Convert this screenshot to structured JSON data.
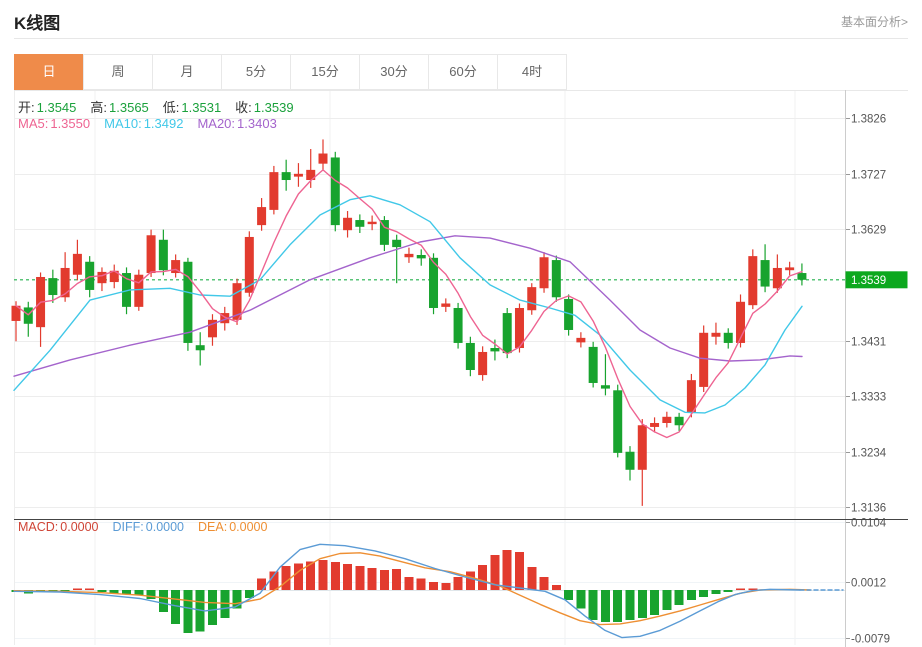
{
  "header": {
    "title": "K线图",
    "link": "基本面分析>"
  },
  "tabs": {
    "items": [
      {
        "name": "day",
        "label": "日",
        "active": true
      },
      {
        "name": "week",
        "label": "周",
        "active": false
      },
      {
        "name": "month",
        "label": "月",
        "active": false
      },
      {
        "name": "5min",
        "label": "5分",
        "active": false
      },
      {
        "name": "15min",
        "label": "15分",
        "active": false
      },
      {
        "name": "30min",
        "label": "30分",
        "active": false
      },
      {
        "name": "60min",
        "label": "60分",
        "active": false
      },
      {
        "name": "4hour",
        "label": "4时",
        "active": false
      }
    ]
  },
  "colors": {
    "up": "#e23b2e",
    "down": "#18a32e",
    "badge": "#0ca81e",
    "price_line": "#22b14c",
    "ohlc_value": "#1ba13c",
    "ma5": "#ee6492",
    "ma10": "#41c8e8",
    "ma20": "#a464cc",
    "diff": "#5b9bd5",
    "dea": "#ee8f33",
    "macd_label": "#cf4436",
    "tab_active_bg": "#ef8b4a",
    "grid": "#ededed",
    "vgrid": "#f2f2f2",
    "axis": "#cccccc",
    "separator": "#444444",
    "tick_text": "#555555"
  },
  "indicators": {
    "ohlc": [
      {
        "label": "开:",
        "value": "1.3545"
      },
      {
        "label": "高:",
        "value": "1.3565"
      },
      {
        "label": "低:",
        "value": "1.3531"
      },
      {
        "label": "收:",
        "value": "1.3539"
      }
    ],
    "ma": [
      {
        "label": "MA5: ",
        "value": "1.3550",
        "color_key": "ma5"
      },
      {
        "label": "MA10: ",
        "value": "1.3492",
        "color_key": "ma10"
      },
      {
        "label": "MA20: ",
        "value": "1.3403",
        "color_key": "ma20"
      }
    ],
    "macd": [
      {
        "label": "MACD:",
        "value": "0.0000",
        "color_key": "macd_label"
      },
      {
        "label": "DIFF:",
        "value": "0.0000",
        "color_key": "diff"
      },
      {
        "label": "DEA:",
        "value": "0.0000",
        "color_key": "dea"
      }
    ]
  },
  "chart_data": {
    "type": "candlestick",
    "title": "K线图 (daily K-line with MA5/MA10/MA20 and MACD)",
    "legend_position": "top-left",
    "grid": true,
    "main": {
      "price_axis": {
        "ticks": [
          "1.3826",
          "1.3727",
          "1.3629",
          "1.3431",
          "1.3333",
          "1.3234",
          "1.3136"
        ],
        "current_price": "1.3539",
        "ylim": [
          1.3136,
          1.3826
        ]
      },
      "candles_ohlc_order": [
        "open",
        "high",
        "low",
        "close"
      ],
      "candles": [
        [
          1.3466,
          1.3501,
          1.343,
          1.3493
        ],
        [
          1.349,
          1.35,
          1.3438,
          1.3461
        ],
        [
          1.3455,
          1.3552,
          1.342,
          1.3544
        ],
        [
          1.3542,
          1.3557,
          1.3498,
          1.3512
        ],
        [
          1.3508,
          1.3588,
          1.35,
          1.356
        ],
        [
          1.3548,
          1.361,
          1.3538,
          1.3585
        ],
        [
          1.3571,
          1.3581,
          1.3508,
          1.3521
        ],
        [
          1.3533,
          1.3561,
          1.3519,
          1.3553
        ],
        [
          1.3535,
          1.3566,
          1.3524,
          1.3555
        ],
        [
          1.3551,
          1.3561,
          1.3478,
          1.3491
        ],
        [
          1.3491,
          1.3557,
          1.3484,
          1.3548
        ],
        [
          1.3551,
          1.3628,
          1.3544,
          1.3618
        ],
        [
          1.361,
          1.3628,
          1.3547,
          1.3556
        ],
        [
          1.3551,
          1.3584,
          1.3543,
          1.3574
        ],
        [
          1.3571,
          1.3578,
          1.3413,
          1.3427
        ],
        [
          1.3423,
          1.3446,
          1.3387,
          1.3414
        ],
        [
          1.3437,
          1.3478,
          1.3422,
          1.3468
        ],
        [
          1.3462,
          1.3491,
          1.3449,
          1.348
        ],
        [
          1.3468,
          1.3541,
          1.3459,
          1.3533
        ],
        [
          1.3516,
          1.3625,
          1.3509,
          1.3615
        ],
        [
          1.3636,
          1.3684,
          1.3626,
          1.3668
        ],
        [
          1.3663,
          1.3741,
          1.3655,
          1.373
        ],
        [
          1.373,
          1.3752,
          1.3697,
          1.3716
        ],
        [
          1.3722,
          1.3746,
          1.3704,
          1.3727
        ],
        [
          1.3716,
          1.3771,
          1.3702,
          1.3734
        ],
        [
          1.3745,
          1.3788,
          1.3733,
          1.3763
        ],
        [
          1.3756,
          1.3766,
          1.3625,
          1.3636
        ],
        [
          1.3627,
          1.3661,
          1.3614,
          1.3649
        ],
        [
          1.3645,
          1.3655,
          1.3622,
          1.3633
        ],
        [
          1.3638,
          1.3653,
          1.3627,
          1.3642
        ],
        [
          1.3645,
          1.3652,
          1.359,
          1.3601
        ],
        [
          1.361,
          1.3619,
          1.3533,
          1.3597
        ],
        [
          1.3579,
          1.3596,
          1.3569,
          1.3585
        ],
        [
          1.3583,
          1.3593,
          1.3564,
          1.3577
        ],
        [
          1.3578,
          1.3586,
          1.3478,
          1.3489
        ],
        [
          1.3491,
          1.3506,
          1.3482,
          1.3497
        ],
        [
          1.3489,
          1.3498,
          1.3417,
          1.3427
        ],
        [
          1.3427,
          1.3438,
          1.3368,
          1.3379
        ],
        [
          1.337,
          1.3421,
          1.336,
          1.3411
        ],
        [
          1.3418,
          1.3433,
          1.3396,
          1.3412
        ],
        [
          1.348,
          1.3489,
          1.34,
          1.3409
        ],
        [
          1.3418,
          1.3497,
          1.341,
          1.3489
        ],
        [
          1.3485,
          1.3533,
          1.3477,
          1.3526
        ],
        [
          1.3524,
          1.3588,
          1.3516,
          1.3579
        ],
        [
          1.3574,
          1.3582,
          1.35,
          1.3508
        ],
        [
          1.3505,
          1.3513,
          1.344,
          1.345
        ],
        [
          1.3428,
          1.3446,
          1.3419,
          1.3436
        ],
        [
          1.342,
          1.3429,
          1.3348,
          1.3356
        ],
        [
          1.3352,
          1.3407,
          1.3334,
          1.3346
        ],
        [
          1.3343,
          1.3353,
          1.3224,
          1.3232
        ],
        [
          1.3234,
          1.3244,
          1.3183,
          1.3202
        ],
        [
          1.3202,
          1.3292,
          1.3138,
          1.3281
        ],
        [
          1.3278,
          1.3295,
          1.3268,
          1.3285
        ],
        [
          1.3285,
          1.3305,
          1.3277,
          1.3296
        ],
        [
          1.3296,
          1.3303,
          1.3271,
          1.3281
        ],
        [
          1.3304,
          1.3372,
          1.3295,
          1.3361
        ],
        [
          1.3349,
          1.3458,
          1.334,
          1.3445
        ],
        [
          1.3438,
          1.3463,
          1.3424,
          1.3445
        ],
        [
          1.3445,
          1.3453,
          1.3417,
          1.3427
        ],
        [
          1.3427,
          1.3513,
          1.3419,
          1.35
        ],
        [
          1.3494,
          1.3593,
          1.3487,
          1.3581
        ],
        [
          1.3574,
          1.3602,
          1.3517,
          1.3527
        ],
        [
          1.3524,
          1.3584,
          1.3516,
          1.356
        ],
        [
          1.3556,
          1.3571,
          1.3547,
          1.3561
        ],
        [
          1.3551,
          1.3568,
          1.3529,
          1.3539
        ]
      ],
      "ma10_path": [
        [
          14,
          1.3343
        ],
        [
          50,
          1.3414
        ],
        [
          90,
          1.3503
        ],
        [
          130,
          1.3521
        ],
        [
          170,
          1.3524
        ],
        [
          200,
          1.3512
        ],
        [
          230,
          1.351
        ],
        [
          260,
          1.3539
        ],
        [
          290,
          1.3601
        ],
        [
          320,
          1.3654
        ],
        [
          350,
          1.3681
        ],
        [
          370,
          1.3688
        ],
        [
          400,
          1.3672
        ],
        [
          430,
          1.3642
        ],
        [
          460,
          1.3578
        ],
        [
          490,
          1.353
        ],
        [
          520,
          1.3503
        ],
        [
          550,
          1.3489
        ],
        [
          575,
          1.3476
        ],
        [
          600,
          1.3441
        ],
        [
          630,
          1.3379
        ],
        [
          660,
          1.3326
        ],
        [
          685,
          1.3304
        ],
        [
          705,
          1.3303
        ],
        [
          725,
          1.3317
        ],
        [
          745,
          1.3347
        ],
        [
          765,
          1.3388
        ],
        [
          785,
          1.345
        ],
        [
          802,
          1.3492
        ]
      ],
      "ma20_path": [
        [
          14,
          1.3368
        ],
        [
          70,
          1.3397
        ],
        [
          130,
          1.3423
        ],
        [
          190,
          1.3446
        ],
        [
          250,
          1.3485
        ],
        [
          310,
          1.3539
        ],
        [
          370,
          1.3578
        ],
        [
          420,
          1.3606
        ],
        [
          455,
          1.3617
        ],
        [
          490,
          1.3613
        ],
        [
          530,
          1.3595
        ],
        [
          570,
          1.3571
        ],
        [
          610,
          1.3503
        ],
        [
          640,
          1.345
        ],
        [
          670,
          1.3418
        ],
        [
          700,
          1.34
        ],
        [
          730,
          1.3395
        ],
        [
          760,
          1.3397
        ],
        [
          790,
          1.3404
        ],
        [
          802,
          1.3403
        ]
      ]
    },
    "macd": {
      "axis_ticks": [
        "0.0104",
        "0.0012",
        "-0.0079"
      ],
      "ylim": [
        -0.0089,
        0.0104
      ],
      "histogram": [
        -0.0003,
        -0.0005,
        -0.0003,
        -0.0002,
        -0.0002,
        0.0002,
        0.0002,
        -0.0003,
        -0.0005,
        -0.0006,
        -0.0008,
        -0.0014,
        -0.0034,
        -0.0052,
        -0.0066,
        -0.0064,
        -0.0054,
        -0.0043,
        -0.0028,
        -0.0012,
        0.0018,
        0.0028,
        0.0037,
        0.0041,
        0.0044,
        0.0046,
        0.0043,
        0.004,
        0.0037,
        0.0034,
        0.0031,
        0.0032,
        0.002,
        0.0018,
        0.0012,
        0.0011,
        0.002,
        0.0028,
        0.0038,
        0.0054,
        0.0061,
        0.0058,
        0.0035,
        0.002,
        0.0008,
        -0.0015,
        -0.0028,
        -0.0046,
        -0.0049,
        -0.0049,
        -0.0046,
        -0.0043,
        -0.0038,
        -0.0031,
        -0.0023,
        -0.0015,
        -0.0011,
        -0.0006,
        -0.0003,
        0.0002,
        0.0002,
        0.0,
        0.0,
        0.0,
        0.0
      ],
      "diff_path": [
        [
          14,
          -0.0002
        ],
        [
          60,
          -0.0003
        ],
        [
          100,
          -0.0007
        ],
        [
          140,
          -0.0013
        ],
        [
          175,
          -0.0024
        ],
        [
          205,
          -0.0032
        ],
        [
          235,
          -0.0026
        ],
        [
          260,
          -0.0005
        ],
        [
          280,
          0.0035
        ],
        [
          300,
          0.0062
        ],
        [
          320,
          0.007
        ],
        [
          345,
          0.0068
        ],
        [
          375,
          0.006
        ],
        [
          405,
          0.0048
        ],
        [
          435,
          0.0033
        ],
        [
          465,
          0.002
        ],
        [
          495,
          0.0008
        ],
        [
          520,
          0.0003
        ],
        [
          545,
          -0.0002
        ],
        [
          565,
          -0.0015
        ],
        [
          585,
          -0.004
        ],
        [
          605,
          -0.0062
        ],
        [
          622,
          -0.0073
        ],
        [
          640,
          -0.0071
        ],
        [
          660,
          -0.0062
        ],
        [
          680,
          -0.0048
        ],
        [
          700,
          -0.0032
        ],
        [
          718,
          -0.0018
        ],
        [
          735,
          -0.0007
        ],
        [
          752,
          -0.0001
        ],
        [
          770,
          0.0001
        ],
        [
          800,
          0.0
        ]
      ],
      "dea_path": [
        [
          14,
          -0.0001
        ],
        [
          60,
          -0.0002
        ],
        [
          100,
          -0.0004
        ],
        [
          140,
          -0.0008
        ],
        [
          175,
          -0.0014
        ],
        [
          205,
          -0.0019
        ],
        [
          235,
          -0.0021
        ],
        [
          260,
          -0.0014
        ],
        [
          280,
          0.0005
        ],
        [
          300,
          0.003
        ],
        [
          320,
          0.0048
        ],
        [
          340,
          0.0056
        ],
        [
          360,
          0.0057
        ],
        [
          380,
          0.0052
        ],
        [
          400,
          0.0044
        ],
        [
          425,
          0.0034
        ],
        [
          450,
          0.0028
        ],
        [
          475,
          0.0018
        ],
        [
          500,
          0.0006
        ],
        [
          520,
          -0.0008
        ],
        [
          540,
          -0.0022
        ],
        [
          560,
          -0.0035
        ],
        [
          580,
          -0.0047
        ],
        [
          600,
          -0.0053
        ],
        [
          620,
          -0.0052
        ],
        [
          640,
          -0.0047
        ],
        [
          660,
          -0.004
        ],
        [
          680,
          -0.0032
        ],
        [
          700,
          -0.0023
        ],
        [
          720,
          -0.0014
        ],
        [
          740,
          -0.0005
        ],
        [
          760,
          0.0
        ],
        [
          790,
          0.0001
        ],
        [
          810,
          0.0
        ]
      ]
    }
  }
}
